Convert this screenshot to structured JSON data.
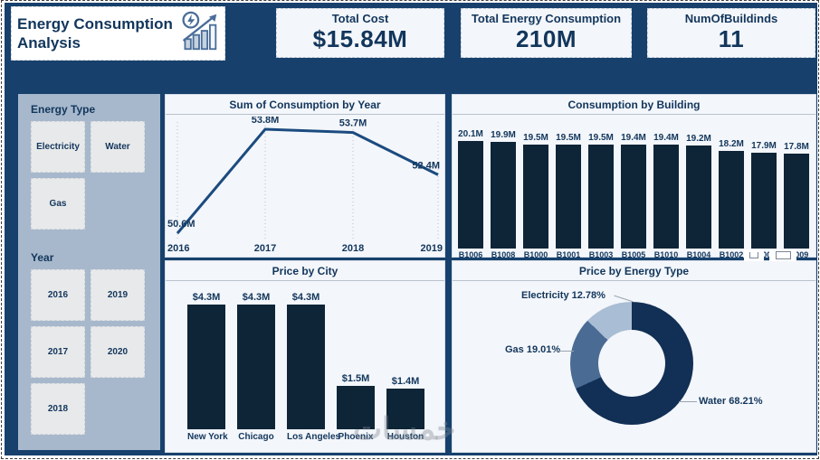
{
  "colors": {
    "background": "#17416c",
    "panel_bg": "#f3f6fa",
    "navy_text": "#12365c",
    "bar": "#0e2538",
    "line": "#1b4b7f",
    "sidebar_bg": "#a7b8cc"
  },
  "header": {
    "title": "Energy Consumption Analysis",
    "kpis": [
      {
        "label": "Total Cost",
        "value": "$15.84M"
      },
      {
        "label": "Total Energy Consumption",
        "value": "210M"
      },
      {
        "label": "NumOfBuildinds",
        "value": "11"
      }
    ]
  },
  "filters": {
    "energy_type": {
      "label": "Energy Type",
      "options": [
        "Electricity",
        "Water",
        "Gas"
      ]
    },
    "year": {
      "label": "Year",
      "options": [
        "2016",
        "2019",
        "2017",
        "2020",
        "2018"
      ]
    }
  },
  "chart_data": [
    {
      "type": "line",
      "title": "Sum of Consumption by Year",
      "x": [
        "2016",
        "2017",
        "2018",
        "2019"
      ],
      "values": [
        50.6,
        53.8,
        53.7,
        52.4
      ],
      "labels": [
        "50.6M",
        "53.8M",
        "53.7M",
        "52.4M"
      ],
      "ylim": [
        50.0,
        54.2
      ],
      "grid": "vertical-dotted",
      "line_color": "#1b4b7f"
    },
    {
      "type": "bar",
      "title": "Consumption by Building",
      "categories": [
        "B1006",
        "B1008",
        "B1000",
        "B1001",
        "B1003",
        "B1005",
        "B1010",
        "B1004",
        "B1002",
        "B1007",
        "B1009"
      ],
      "values": [
        20.1,
        19.9,
        19.5,
        19.5,
        19.5,
        19.4,
        19.4,
        19.2,
        18.2,
        17.9,
        17.8
      ],
      "labels": [
        "20.1M",
        "19.9M",
        "19.5M",
        "19.5M",
        "19.5M",
        "19.4M",
        "19.4M",
        "19.2M",
        "18.2M",
        "17.9M",
        "17.8M"
      ],
      "ylim": [
        0,
        20.1
      ],
      "bar_color": "#0e2538"
    },
    {
      "type": "bar",
      "title": "Price by City",
      "categories": [
        "New York",
        "Chicago",
        "Los Angeles",
        "Phoenix",
        "Houston"
      ],
      "values": [
        4.3,
        4.3,
        4.3,
        1.5,
        1.4
      ],
      "labels": [
        "$4.3M",
        "$4.3M",
        "$4.3M",
        "$1.5M",
        "$1.4M"
      ],
      "ylim": [
        0,
        4.3
      ],
      "bar_color": "#0e2538"
    },
    {
      "type": "donut",
      "title": "Price by Energy Type",
      "slices": [
        {
          "name": "Water",
          "pct": 68.21,
          "label": "Water 68.21%",
          "color": "#122f55"
        },
        {
          "name": "Gas",
          "pct": 19.01,
          "label": "Gas 19.01%",
          "color": "#4a6b93"
        },
        {
          "name": "Electricity",
          "pct": 12.78,
          "label": "Electricity 12.78%",
          "color": "#a9bdd4"
        }
      ]
    }
  ],
  "watermark": "خمسات"
}
